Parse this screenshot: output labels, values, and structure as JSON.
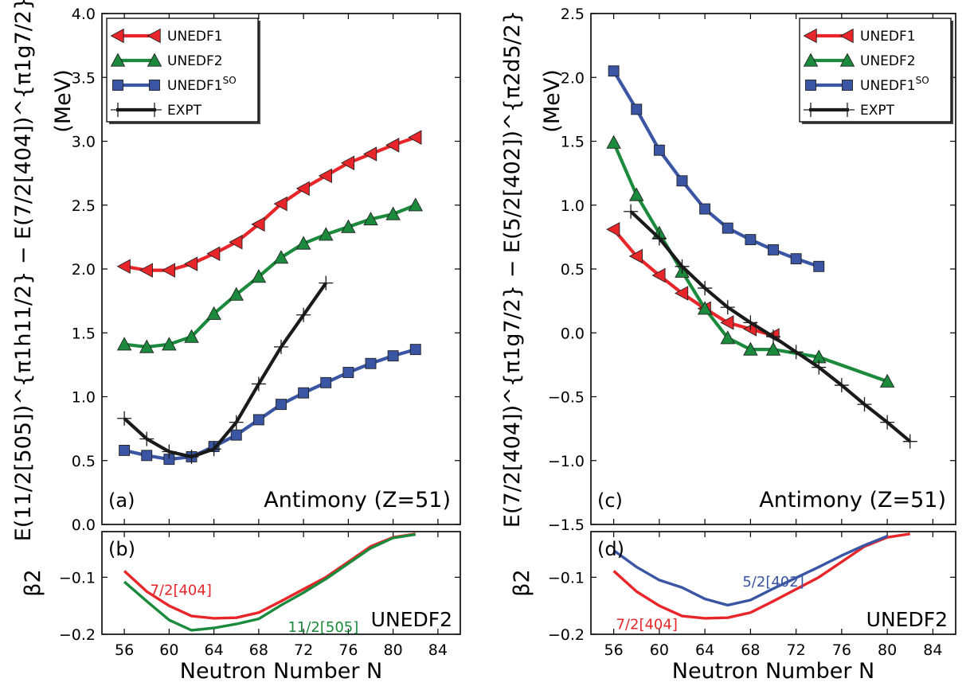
{
  "shared": {
    "xlabel": "Neutron Number N",
    "xlim": [
      54,
      86
    ],
    "xticks": [
      56,
      60,
      64,
      68,
      72,
      76,
      80,
      84
    ]
  },
  "legend_entries": [
    {
      "key": "UNEDF1",
      "label": "UNEDF1",
      "sup": "",
      "color": "#e8262a",
      "marker": "triangle-left"
    },
    {
      "key": "UNEDF2",
      "label": "UNEDF2",
      "sup": "",
      "color": "#1b8a3c",
      "marker": "triangle-up"
    },
    {
      "key": "UNEDF1SO",
      "label": "UNEDF1",
      "sup": "SO",
      "color": "#3a55a4",
      "marker": "square"
    },
    {
      "key": "EXPT",
      "label": "EXPT",
      "sup": "",
      "color": "#1a1a1a",
      "marker": "plus"
    }
  ],
  "chart_data": [
    {
      "type": "line",
      "panel": "(a)",
      "nucleus": "Antimony (Z=51)",
      "ylabel_main": "E(11/2[505])^{π1h11/2} − E(7/2[404])^{π1g7/2}",
      "ylabel_unit": "(MeV)",
      "ylim": [
        0.0,
        4.0
      ],
      "yticks": [
        "0.0",
        "0.5",
        "1.0",
        "1.5",
        "2.0",
        "2.5",
        "3.0",
        "3.5",
        "4.0"
      ],
      "legend_position": "top-left",
      "series": [
        {
          "name": "UNEDF1",
          "x": [
            56,
            58,
            60,
            62,
            64,
            66,
            68,
            70,
            72,
            74,
            76,
            78,
            80,
            82
          ],
          "y": [
            2.02,
            1.99,
            1.99,
            2.04,
            2.12,
            2.21,
            2.35,
            2.51,
            2.63,
            2.73,
            2.83,
            2.9,
            2.97,
            3.03
          ]
        },
        {
          "name": "UNEDF2",
          "x": [
            56,
            58,
            60,
            62,
            64,
            66,
            68,
            70,
            72,
            74,
            76,
            78,
            80,
            82
          ],
          "y": [
            1.41,
            1.39,
            1.41,
            1.47,
            1.65,
            1.8,
            1.94,
            2.09,
            2.2,
            2.27,
            2.33,
            2.39,
            2.43,
            2.5
          ]
        },
        {
          "name": "UNEDF1SO",
          "x": [
            56,
            58,
            60,
            62,
            64,
            66,
            68,
            70,
            72,
            74,
            76,
            78,
            80,
            82
          ],
          "y": [
            0.58,
            0.54,
            0.51,
            0.53,
            0.61,
            0.7,
            0.82,
            0.94,
            1.03,
            1.11,
            1.19,
            1.26,
            1.32,
            1.37
          ]
        },
        {
          "name": "EXPT",
          "x": [
            56,
            58,
            60,
            62,
            64,
            66,
            68,
            70,
            72,
            74
          ],
          "y": [
            0.83,
            0.67,
            0.57,
            0.53,
            0.59,
            0.8,
            1.1,
            1.39,
            1.64,
            1.89
          ]
        }
      ]
    },
    {
      "type": "line",
      "panel": "(b)",
      "model_label": "UNEDF2",
      "ylabel": "β2",
      "ylim": [
        -0.2,
        -0.02
      ],
      "yticks": [
        "−0.1",
        "−0.2"
      ],
      "series": [
        {
          "name": "7/2[404]",
          "color": "#e8262a",
          "x": [
            56,
            58,
            60,
            62,
            64,
            66,
            68,
            70,
            72,
            74,
            76,
            78,
            80,
            82
          ],
          "y": [
            -0.089,
            -0.125,
            -0.15,
            -0.168,
            -0.172,
            -0.171,
            -0.162,
            -0.142,
            -0.121,
            -0.1,
            -0.073,
            -0.046,
            -0.03,
            -0.024
          ]
        },
        {
          "name": "11/2[505]",
          "color": "#1b8a3c",
          "x": [
            56,
            58,
            60,
            62,
            64,
            66,
            68,
            70,
            72,
            74,
            76,
            78,
            80,
            82
          ],
          "y": [
            -0.108,
            -0.142,
            -0.175,
            -0.193,
            -0.189,
            -0.182,
            -0.173,
            -0.149,
            -0.127,
            -0.103,
            -0.076,
            -0.049,
            -0.031,
            -0.025
          ]
        }
      ],
      "curve_labels": [
        "7/2[404]",
        "11/2[505]"
      ]
    },
    {
      "type": "line",
      "panel": "(c)",
      "nucleus": "Antimony (Z=51)",
      "ylabel_main": "E(7/2[404])^{π1g7/2} − E(5/2[402])^{π2d5/2}",
      "ylabel_unit": "(MeV)",
      "ylim": [
        -1.5,
        2.5
      ],
      "yticks": [
        "−1.5",
        "−1.0",
        "−0.5",
        "0.0",
        "0.5",
        "1.0",
        "1.5",
        "2.0",
        "2.5"
      ],
      "legend_position": "top-right",
      "series": [
        {
          "name": "UNEDF1",
          "x": [
            56,
            58,
            60,
            62,
            64,
            66,
            68,
            70
          ],
          "y": [
            0.81,
            0.6,
            0.45,
            0.31,
            0.19,
            0.08,
            0.03,
            -0.02
          ]
        },
        {
          "name": "UNEDF2",
          "x": [
            56,
            58,
            60,
            62,
            64,
            66,
            68,
            70,
            74,
            80
          ],
          "y": [
            1.49,
            1.08,
            0.78,
            0.48,
            0.19,
            -0.04,
            -0.13,
            -0.13,
            -0.19,
            -0.38
          ]
        },
        {
          "name": "UNEDF1SO",
          "x": [
            56,
            58,
            60,
            62,
            64,
            66,
            68,
            70,
            72,
            74
          ],
          "y": [
            2.05,
            1.75,
            1.43,
            1.19,
            0.97,
            0.82,
            0.73,
            0.65,
            0.58,
            0.52
          ]
        },
        {
          "name": "EXPT",
          "x": [
            57.5,
            60,
            62,
            64,
            66,
            68,
            70,
            72,
            74,
            76,
            78,
            80,
            82
          ],
          "y": [
            0.95,
            0.74,
            0.52,
            0.35,
            0.2,
            0.08,
            -0.03,
            -0.15,
            -0.27,
            -0.41,
            -0.56,
            -0.7,
            -0.85
          ]
        }
      ]
    },
    {
      "type": "line",
      "panel": "(d)",
      "model_label": "UNEDF2",
      "ylabel": "β2",
      "ylim": [
        -0.2,
        -0.02
      ],
      "yticks": [
        "−0.1",
        "−0.2"
      ],
      "series": [
        {
          "name": "7/2[404]",
          "color": "#e8262a",
          "x": [
            56,
            58,
            60,
            62,
            64,
            66,
            68,
            70,
            72,
            74,
            76,
            78,
            80,
            82
          ],
          "y": [
            -0.089,
            -0.125,
            -0.15,
            -0.168,
            -0.172,
            -0.171,
            -0.162,
            -0.142,
            -0.121,
            -0.1,
            -0.073,
            -0.046,
            -0.03,
            -0.024
          ]
        },
        {
          "name": "5/2[402]",
          "color": "#3a55a4",
          "x": [
            56,
            58,
            60,
            62,
            64,
            66,
            68,
            70,
            72,
            74,
            76,
            78,
            80
          ],
          "y": [
            -0.053,
            -0.082,
            -0.105,
            -0.118,
            -0.138,
            -0.149,
            -0.14,
            -0.12,
            -0.101,
            -0.082,
            -0.062,
            -0.044,
            -0.028
          ]
        }
      ],
      "curve_labels": [
        "5/2[402]",
        "7/2[404]"
      ]
    }
  ]
}
